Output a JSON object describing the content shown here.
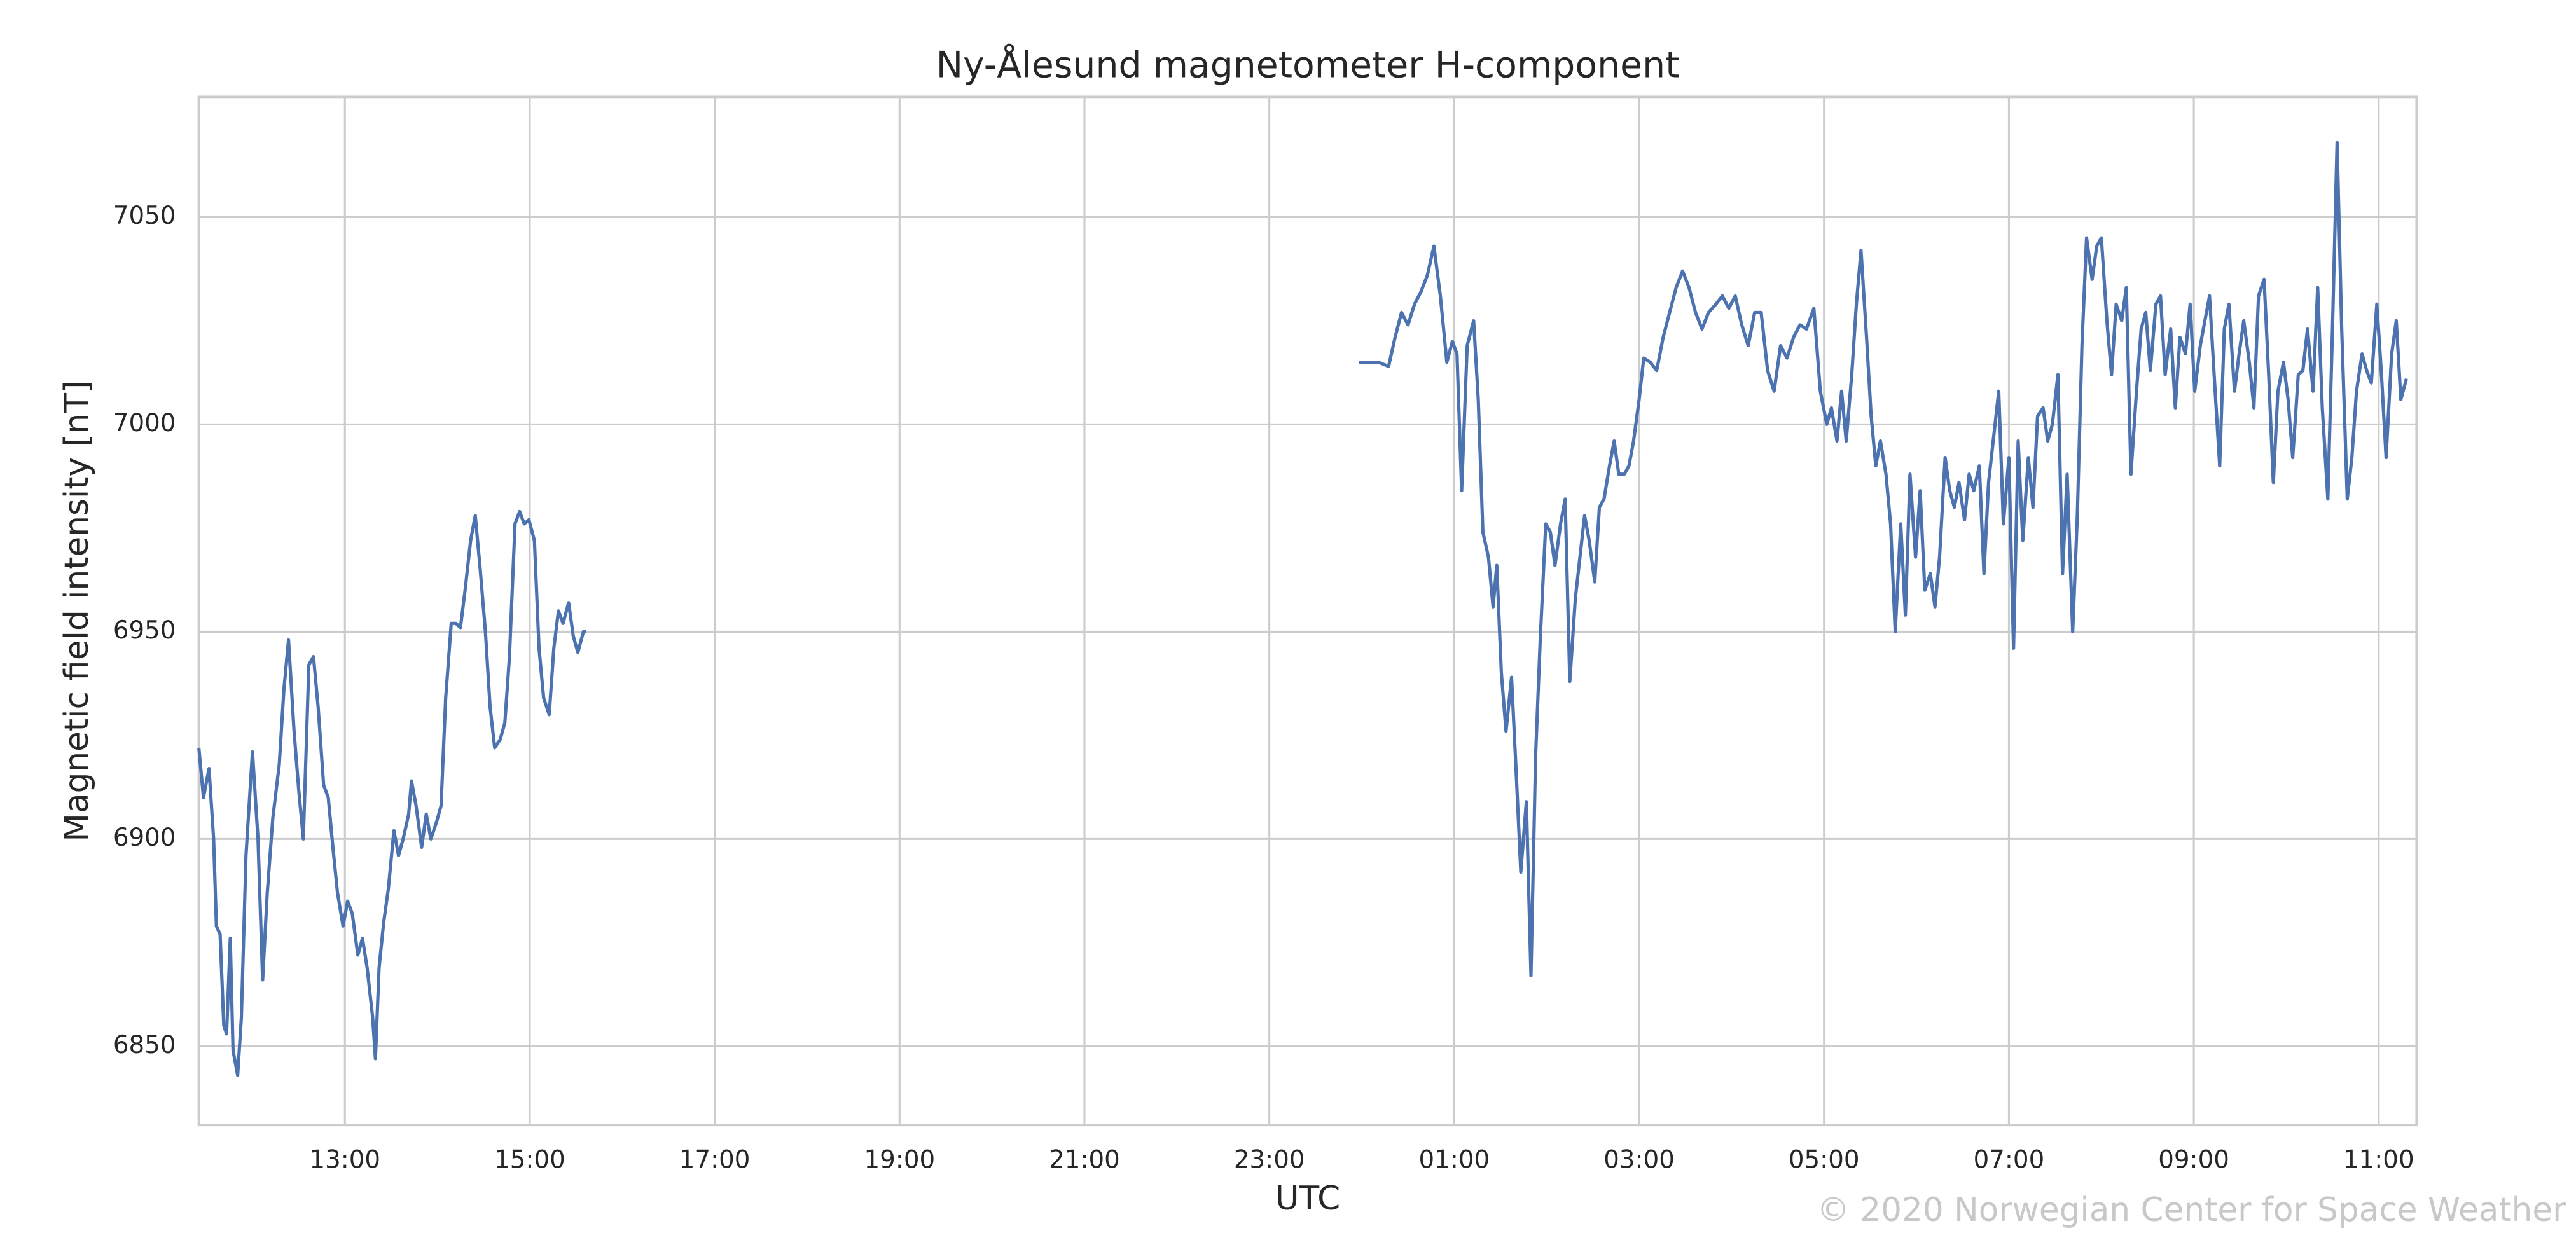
{
  "chart_data": {
    "type": "line",
    "title": "Ny-Ålesund magnetometer H-component",
    "xlabel": "UTC",
    "ylabel": "Magnetic field intensity [nT]",
    "watermark": "© 2020 Norwegian Center for Space Weather",
    "color": "#4c72b0",
    "grid": true,
    "xlim": [
      11.42,
      35.41
    ],
    "ylim": [
      6831,
      7079
    ],
    "xticks": [
      {
        "value": 13,
        "label": "13:00"
      },
      {
        "value": 15,
        "label": "15:00"
      },
      {
        "value": 17,
        "label": "17:00"
      },
      {
        "value": 19,
        "label": "19:00"
      },
      {
        "value": 21,
        "label": "21:00"
      },
      {
        "value": 23,
        "label": "23:00"
      },
      {
        "value": 25,
        "label": "01:00"
      },
      {
        "value": 27,
        "label": "03:00"
      },
      {
        "value": 29,
        "label": "05:00"
      },
      {
        "value": 31,
        "label": "07:00"
      },
      {
        "value": 33,
        "label": "09:00"
      },
      {
        "value": 35,
        "label": "11:00"
      }
    ],
    "yticks": [
      6850,
      6900,
      6950,
      7000,
      7050
    ],
    "x": [
      11.42,
      11.47,
      11.53,
      11.58,
      11.61,
      11.65,
      11.69,
      11.72,
      11.76,
      11.79,
      11.84,
      11.88,
      11.93,
      12.0,
      12.06,
      12.11,
      12.16,
      12.22,
      12.29,
      12.34,
      12.39,
      12.45,
      12.5,
      12.55,
      12.61,
      12.66,
      12.71,
      12.77,
      12.82,
      12.87,
      12.92,
      12.98,
      13.03,
      13.08,
      13.14,
      13.19,
      13.24,
      13.3,
      13.33,
      13.37,
      13.42,
      13.47,
      13.53,
      13.58,
      13.63,
      13.69,
      13.72,
      13.77,
      13.83,
      13.88,
      13.93,
      13.99,
      14.04,
      14.09,
      14.15,
      14.2,
      14.25,
      14.3,
      14.36,
      14.41,
      14.46,
      14.52,
      14.57,
      14.62,
      14.68,
      14.73,
      14.78,
      14.84,
      14.89,
      14.94,
      14.99,
      15.05,
      15.1,
      15.15,
      15.21,
      15.26,
      15.31,
      15.36,
      15.42,
      15.47,
      15.52,
      15.58,
      15.61,
      19.0,
      23.97,
      24.08,
      24.18,
      24.29,
      24.36,
      24.43,
      24.5,
      24.57,
      24.64,
      24.71,
      24.78,
      24.85,
      24.92,
      24.98,
      25.03,
      25.08,
      25.14,
      25.21,
      25.26,
      25.31,
      25.37,
      25.42,
      25.46,
      25.51,
      25.56,
      25.62,
      25.67,
      25.72,
      25.78,
      25.83,
      25.88,
      25.93,
      25.99,
      26.04,
      26.09,
      26.15,
      26.2,
      26.25,
      26.31,
      26.36,
      26.41,
      26.46,
      26.52,
      26.57,
      26.62,
      26.68,
      26.73,
      26.78,
      26.84,
      26.89,
      26.94,
      27.0,
      27.05,
      27.12,
      27.19,
      27.26,
      27.33,
      27.4,
      27.47,
      27.54,
      27.61,
      27.68,
      27.75,
      27.83,
      27.9,
      27.97,
      28.04,
      28.11,
      28.18,
      28.25,
      28.32,
      28.39,
      28.46,
      28.53,
      28.6,
      28.67,
      28.74,
      28.81,
      28.89,
      28.96,
      29.03,
      29.08,
      29.14,
      29.19,
      29.24,
      29.3,
      29.35,
      29.4,
      29.46,
      29.51,
      29.56,
      29.61,
      29.67,
      29.72,
      29.77,
      29.83,
      29.88,
      29.93,
      29.99,
      30.04,
      30.09,
      30.15,
      30.2,
      30.25,
      30.31,
      30.36,
      30.41,
      30.46,
      30.52,
      30.57,
      30.62,
      30.68,
      30.73,
      30.78,
      30.84,
      30.89,
      30.94,
      31.0,
      31.05,
      31.1,
      31.15,
      31.21,
      31.26,
      31.31,
      31.37,
      31.42,
      31.47,
      31.53,
      31.58,
      31.63,
      31.69,
      31.74,
      31.79,
      31.84,
      31.9,
      31.95,
      32.0,
      32.06,
      32.11,
      32.16,
      32.22,
      32.27,
      32.32,
      32.38,
      32.43,
      32.48,
      32.53,
      32.59,
      32.64,
      32.69,
      32.75,
      32.8,
      32.85,
      32.91,
      32.96,
      33.01,
      33.07,
      33.12,
      33.17,
      33.22,
      33.28,
      33.33,
      33.38,
      33.44,
      33.49,
      33.54,
      33.6,
      33.65,
      33.7,
      33.76,
      33.81,
      33.86,
      33.91,
      33.97,
      34.02,
      34.07,
      34.13,
      34.18,
      34.23,
      34.29,
      34.34,
      34.39,
      34.45,
      34.5,
      34.55,
      34.6,
      34.66,
      34.71,
      34.76,
      34.82,
      34.87,
      34.92,
      34.98,
      35.03,
      35.08,
      35.14,
      35.19,
      35.24,
      35.3
    ],
    "values": [
      6922,
      6910,
      6917,
      6900,
      6879,
      6877,
      6855,
      6853,
      6876,
      6849,
      6843,
      6857,
      6896,
      6921,
      6900,
      6866,
      6887,
      6905,
      6918,
      6936,
      6948,
      6926,
      6912,
      6900,
      6942,
      6944,
      6932,
      6913,
      6910,
      6898,
      6887,
      6879,
      6885,
      6882,
      6872,
      6876,
      6869,
      6857,
      6847,
      6869,
      6880,
      6888,
      6902,
      6896,
      6900,
      6906,
      6914,
      6908,
      6898,
      6906,
      6900,
      6904,
      6908,
      6934,
      6952,
      6952,
      6951,
      6960,
      6972,
      6978,
      6966,
      6950,
      6932,
      6922,
      6924,
      6928,
      6944,
      6976,
      6979,
      6976,
      6977,
      6972,
      6946,
      6934,
      6930,
      6946,
      6955,
      6952,
      6957,
      6949,
      6945,
      6950,
      6950,
      null,
      7015,
      7015,
      7015,
      7014,
      7021,
      7027,
      7024,
      7029,
      7032,
      7036,
      7043,
      7031,
      7015,
      7020,
      7017,
      6984,
      7019,
      7025,
      7006,
      6974,
      6968,
      6956,
      6966,
      6940,
      6926,
      6939,
      6916,
      6892,
      6909,
      6867,
      6920,
      6948,
      6976,
      6974,
      6966,
      6976,
      6982,
      6938,
      6958,
      6968,
      6978,
      6972,
      6962,
      6980,
      6982,
      6990,
      6996,
      6988,
      6988,
      6990,
      6996,
      7006,
      7016,
      7015,
      7013,
      7021,
      7027,
      7033,
      7037,
      7033,
      7027,
      7023,
      7027,
      7029,
      7031,
      7028,
      7031,
      7024,
      7019,
      7027,
      7027,
      7013,
      7008,
      7019,
      7016,
      7021,
      7024,
      7023,
      7028,
      7008,
      7000,
      7004,
      6996,
      7008,
      6996,
      7012,
      7029,
      7042,
      7021,
      7002,
      6990,
      6996,
      6988,
      6976,
      6950,
      6976,
      6954,
      6988,
      6968,
      6984,
      6960,
      6964,
      6956,
      6968,
      6992,
      6984,
      6980,
      6986,
      6977,
      6988,
      6984,
      6990,
      6964,
      6986,
      6998,
      7008,
      6976,
      6992,
      6946,
      6996,
      6972,
      6992,
      6980,
      7002,
      7004,
      6996,
      7000,
      7012,
      6964,
      6988,
      6950,
      6978,
      7019,
      7045,
      7035,
      7043,
      7045,
      7025,
      7012,
      7029,
      7025,
      7033,
      6988,
      7008,
      7023,
      7027,
      7013,
      7029,
      7031,
      7012,
      7023,
      7004,
      7021,
      7017,
      7029,
      7008,
      7019,
      7025,
      7031,
      7012,
      6990,
      7023,
      7029,
      7008,
      7017,
      7025,
      7015,
      7004,
      7031,
      7035,
      7012,
      6986,
      7008,
      7015,
      7006,
      6992,
      7012,
      7013,
      7023,
      7008,
      7033,
      7004,
      6982,
      7023,
      7068,
      7023,
      6982,
      6992,
      7008,
      7017,
      7013,
      7010,
      7029,
      7012,
      6992,
      7017,
      7025,
      7006,
      7011
    ]
  }
}
